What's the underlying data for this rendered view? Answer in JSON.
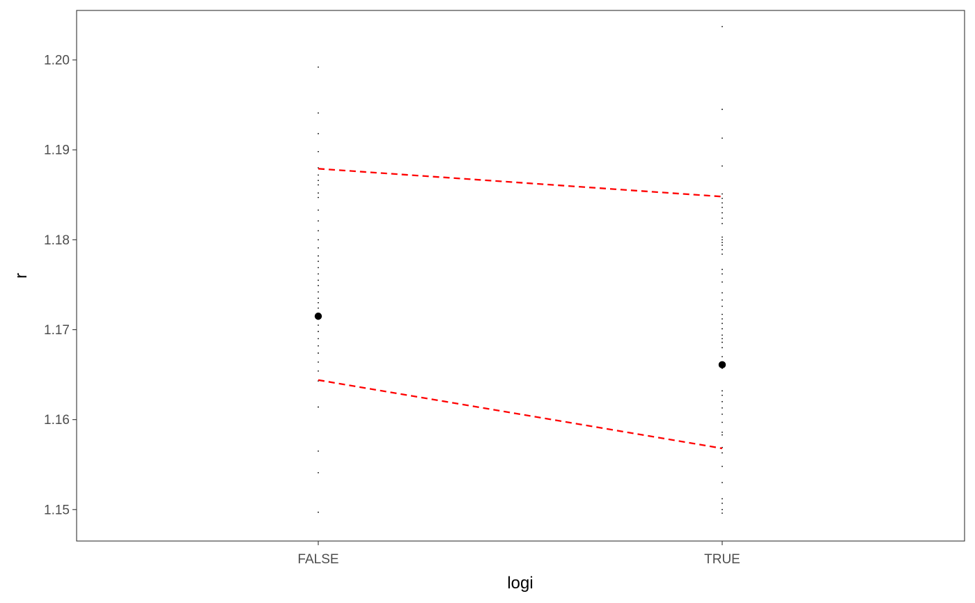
{
  "chart_data": {
    "type": "scatter",
    "title": "",
    "xlabel": "logi",
    "ylabel": "r",
    "categories": [
      "FALSE",
      "TRUE"
    ],
    "ylim": [
      1.1465,
      1.2055
    ],
    "yticks": [
      1.15,
      1.16,
      1.17,
      1.18,
      1.19,
      1.2
    ],
    "ytick_labels": [
      "1.15",
      "1.16",
      "1.17",
      "1.18",
      "1.19",
      "1.20"
    ],
    "grid": false,
    "means": [
      {
        "category": "FALSE",
        "value": 1.1715
      },
      {
        "category": "TRUE",
        "value": 1.1661
      }
    ],
    "ci_upper": [
      {
        "category": "FALSE",
        "value": 1.1879
      },
      {
        "category": "TRUE",
        "value": 1.1848
      }
    ],
    "ci_lower": [
      {
        "category": "FALSE",
        "value": 1.1644
      },
      {
        "category": "TRUE",
        "value": 1.1568
      }
    ],
    "raw_points": [
      {
        "category": "FALSE",
        "values": [
          1.1992,
          1.1941,
          1.1918,
          1.1898,
          1.188,
          1.1872,
          1.1866,
          1.1861,
          1.1852,
          1.1847,
          1.1833,
          1.1821,
          1.181,
          1.18,
          1.1791,
          1.1782,
          1.1776,
          1.1769,
          1.1762,
          1.1755,
          1.1749,
          1.1742,
          1.1735,
          1.173,
          1.1724,
          1.1718,
          1.1712,
          1.1705,
          1.1698,
          1.169,
          1.1682,
          1.1674,
          1.1664,
          1.1654,
          1.1643,
          1.1614,
          1.1565,
          1.1541,
          1.1497
        ]
      },
      {
        "category": "TRUE",
        "values": [
          1.2037,
          1.1945,
          1.1913,
          1.1882,
          1.1851,
          1.1846,
          1.1841,
          1.1836,
          1.183,
          1.1824,
          1.1818,
          1.1803,
          1.18,
          1.1797,
          1.1794,
          1.1789,
          1.1784,
          1.1767,
          1.1762,
          1.1753,
          1.1741,
          1.1733,
          1.1726,
          1.1717,
          1.1712,
          1.1707,
          1.1701,
          1.1694,
          1.169,
          1.1686,
          1.168,
          1.167,
          1.1664,
          1.1661,
          1.1657,
          1.1632,
          1.1627,
          1.162,
          1.1613,
          1.1606,
          1.1597,
          1.1586,
          1.1583,
          1.1569,
          1.1563,
          1.1548,
          1.153,
          1.1512,
          1.1507,
          1.15,
          1.1496
        ]
      }
    ],
    "colors": {
      "ci_line": "#ff0000",
      "mean_point": "#000000",
      "raw_point": "#000000",
      "panel_border": "#333333",
      "tick_label": "#4d4d4d"
    },
    "ci_line_style": "dashed"
  }
}
